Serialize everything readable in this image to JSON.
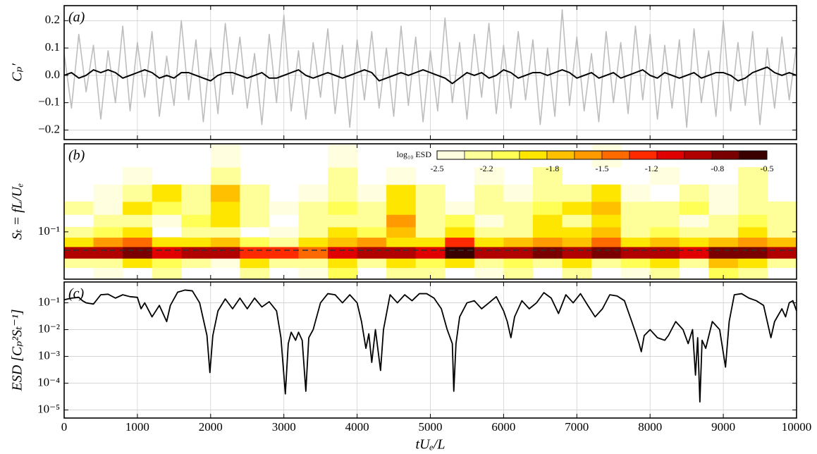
{
  "chart_data": [
    {
      "type": "line",
      "panel_label": "(a)",
      "ylabel": "Cₚ′",
      "xlim": [
        0,
        10000
      ],
      "xticks": [
        0,
        1000,
        2000,
        3000,
        4000,
        5000,
        6000,
        7000,
        8000,
        9000,
        10000
      ],
      "ylim": [
        -0.235,
        0.255
      ],
      "yticks": [
        {
          "value": -0.2,
          "label": "−0.2"
        },
        {
          "value": -0.1,
          "label": "−0.1"
        },
        {
          "value": 0,
          "label": "0.0"
        },
        0.1,
        0.2
      ],
      "grid": true,
      "x": [
        0,
        100,
        200,
        300,
        400,
        500,
        600,
        700,
        800,
        900,
        1000,
        1100,
        1200,
        1300,
        1400,
        1500,
        1600,
        1700,
        1800,
        1900,
        2000,
        2100,
        2200,
        2300,
        2400,
        2500,
        2600,
        2700,
        2800,
        2900,
        3000,
        3100,
        3200,
        3300,
        3400,
        3500,
        3600,
        3700,
        3800,
        3900,
        4000,
        4100,
        4200,
        4300,
        4400,
        4500,
        4600,
        4700,
        4800,
        4900,
        5000,
        5100,
        5200,
        5300,
        5400,
        5500,
        5600,
        5700,
        5800,
        5900,
        6000,
        6100,
        6200,
        6300,
        6400,
        6500,
        6600,
        6700,
        6800,
        6900,
        7000,
        7100,
        7200,
        7300,
        7400,
        7500,
        7600,
        7700,
        7800,
        7900,
        8000,
        8100,
        8200,
        8300,
        8400,
        8500,
        8600,
        8700,
        8800,
        8900,
        9000,
        9100,
        9200,
        9300,
        9400,
        9500,
        9600,
        9700,
        9800,
        9900,
        10000
      ],
      "series": [
        {
          "color": "#bdbdbd",
          "width": 1.6,
          "values": [
            0.08,
            -0.12,
            0.15,
            -0.06,
            0.11,
            -0.16,
            0.09,
            -0.1,
            0.18,
            -0.13,
            0.12,
            -0.08,
            0.16,
            -0.15,
            0.07,
            -0.11,
            0.2,
            -0.09,
            0.13,
            -0.17,
            0.1,
            -0.14,
            0.19,
            -0.07,
            0.14,
            -0.12,
            0.08,
            -0.18,
            0.15,
            -0.1,
            0.22,
            -0.13,
            0.09,
            -0.16,
            0.12,
            -0.08,
            0.17,
            -0.14,
            0.11,
            -0.19,
            0.13,
            -0.09,
            0.16,
            -0.12,
            0.1,
            -0.15,
            0.18,
            -0.11,
            0.14,
            -0.17,
            0.09,
            -0.13,
            0.21,
            -0.1,
            0.12,
            -0.16,
            0.15,
            -0.08,
            0.19,
            -0.14,
            0.11,
            -0.12,
            0.16,
            -0.09,
            0.13,
            -0.18,
            0.1,
            -0.15,
            0.24,
            -0.11,
            0.14,
            -0.13,
            0.08,
            -0.17,
            0.16,
            -0.1,
            0.12,
            -0.14,
            0.18,
            -0.09,
            0.15,
            -0.16,
            0.11,
            -0.12,
            0.13,
            -0.19,
            0.17,
            -0.1,
            0.09,
            -0.15,
            0.2,
            -0.13,
            0.12,
            -0.11,
            0.16,
            -0.18,
            0.1,
            -0.12,
            0.14,
            -0.09,
            0.11
          ]
        },
        {
          "color": "#000000",
          "width": 2,
          "values": [
            0.0,
            0.01,
            -0.01,
            0.0,
            0.02,
            0.01,
            0.02,
            0.01,
            -0.01,
            0.0,
            0.01,
            0.02,
            0.01,
            -0.01,
            0.0,
            -0.01,
            0.01,
            0.01,
            0.0,
            -0.01,
            -0.02,
            0.0,
            0.01,
            0.01,
            0.0,
            -0.01,
            0.0,
            0.01,
            -0.01,
            -0.01,
            0.0,
            0.01,
            0.02,
            0.0,
            -0.01,
            0.0,
            0.01,
            0.0,
            -0.01,
            0.0,
            0.01,
            0.02,
            0.01,
            -0.02,
            -0.01,
            0.0,
            0.01,
            0.0,
            0.01,
            0.02,
            0.01,
            0.0,
            -0.01,
            -0.03,
            -0.01,
            0.01,
            0.0,
            0.01,
            -0.01,
            0.0,
            0.02,
            0.01,
            -0.01,
            0.0,
            0.01,
            0.01,
            0.0,
            0.01,
            0.02,
            0.01,
            -0.01,
            0.0,
            0.01,
            -0.01,
            0.0,
            0.01,
            -0.01,
            0.0,
            0.01,
            0.02,
            0.0,
            -0.01,
            0.01,
            0.0,
            -0.01,
            0.0,
            0.01,
            -0.01,
            0.0,
            0.01,
            0.01,
            0.0,
            -0.02,
            -0.01,
            0.01,
            0.02,
            0.03,
            0.01,
            0.0,
            0.01,
            0.0
          ]
        }
      ]
    },
    {
      "type": "heatmap",
      "panel_label": "(b)",
      "ylabel": "Sₜ = fL/Uₑ",
      "xlim": [
        0,
        10000
      ],
      "xticks": [
        0,
        1000,
        2000,
        3000,
        4000,
        5000,
        6000,
        7000,
        8000,
        9000,
        10000
      ],
      "yscale": "log",
      "ylim": [
        0.04,
        0.55
      ],
      "yticks": [
        {
          "value": 0.1,
          "label": "10⁻¹"
        }
      ],
      "hline": 0.07,
      "x_edges": [
        0,
        400,
        800,
        1200,
        1600,
        2000,
        2400,
        2800,
        3200,
        3600,
        4000,
        4400,
        4800,
        5200,
        5600,
        6000,
        6400,
        6800,
        7200,
        7600,
        8000,
        8400,
        8800,
        9200,
        9600,
        10000
      ],
      "y_edges": [
        0.04,
        0.05,
        0.06,
        0.075,
        0.09,
        0.11,
        0.14,
        0.18,
        0.25,
        0.35,
        0.55
      ],
      "z": [
        [
          null,
          -2.4,
          null,
          -2.3,
          null,
          null,
          -2.2,
          null,
          -2.4,
          -2.1,
          null,
          -2.2,
          -2.3,
          null,
          -2.4,
          -2.3,
          null,
          -2.2,
          null,
          -2.4,
          -2.3,
          null,
          -2.1,
          -2.3,
          null
        ],
        [
          -2.3,
          -2.2,
          -2.0,
          -2.1,
          -2.3,
          -2.4,
          -2.0,
          -2.2,
          -2.3,
          -1.9,
          -2.2,
          -2.0,
          -2.1,
          -1.9,
          -2.2,
          -2.1,
          -2.3,
          -2.0,
          -2.2,
          -2.1,
          -2.0,
          -2.3,
          -1.8,
          -2.0,
          -2.2
        ],
        [
          -1.0,
          -0.9,
          -0.8,
          -1.1,
          -1.0,
          -0.9,
          -1.3,
          -1.2,
          -1.4,
          -1.1,
          -0.9,
          -1.0,
          -1.1,
          -0.6,
          -1.0,
          -0.9,
          -0.7,
          -1.0,
          -0.8,
          -0.9,
          -1.0,
          -1.1,
          -0.8,
          -0.7,
          -0.9
        ],
        [
          -1.9,
          -1.6,
          -1.5,
          -2.0,
          -1.9,
          -1.8,
          -2.1,
          -2.2,
          -2.0,
          -1.8,
          -1.6,
          -1.9,
          -2.0,
          -1.3,
          -1.9,
          -1.7,
          -1.6,
          -1.8,
          -1.5,
          -1.9,
          -1.8,
          -2.0,
          -1.7,
          -1.6,
          -1.8
        ],
        [
          -2.3,
          -2.1,
          -2.0,
          null,
          -2.2,
          -2.3,
          null,
          -2.4,
          -2.2,
          -2.0,
          -2.1,
          -1.7,
          -2.2,
          -2.0,
          -2.3,
          -2.2,
          -1.9,
          -2.0,
          -1.8,
          -2.2,
          -2.1,
          -2.3,
          -2.2,
          -2.0,
          -2.3
        ],
        [
          null,
          -2.2,
          -2.3,
          -2.4,
          -2.1,
          -2.0,
          -2.3,
          null,
          -2.2,
          -2.3,
          -2.2,
          -1.6,
          -2.3,
          -2.1,
          -2.4,
          -2.3,
          -2.0,
          -2.2,
          -1.9,
          -2.3,
          -2.2,
          -2.4,
          -2.3,
          -2.1,
          -2.2
        ],
        [
          -2.3,
          -2.4,
          -2.0,
          -2.1,
          -2.3,
          -1.9,
          -2.2,
          -2.4,
          -2.3,
          -2.1,
          -2.3,
          -1.9,
          -2.2,
          -2.4,
          -2.2,
          -2.3,
          -2.1,
          -2.0,
          -1.8,
          -2.2,
          -2.3,
          -2.1,
          -2.4,
          -2.2,
          -2.3
        ],
        [
          null,
          -2.4,
          -2.2,
          -2.0,
          -2.3,
          -1.8,
          -2.3,
          null,
          -2.4,
          -2.2,
          -2.4,
          -2.0,
          -2.3,
          null,
          -2.3,
          -2.4,
          -2.2,
          -2.3,
          -2.0,
          -2.4,
          null,
          -2.2,
          -2.4,
          -2.3,
          null
        ],
        [
          null,
          null,
          -2.4,
          null,
          null,
          -2.3,
          null,
          null,
          null,
          -2.2,
          null,
          -2.4,
          null,
          null,
          -2.4,
          null,
          -2.3,
          null,
          null,
          null,
          -2.4,
          null,
          null,
          -2.3,
          null
        ],
        [
          null,
          null,
          null,
          null,
          null,
          -2.4,
          null,
          null,
          null,
          -2.4,
          null,
          null,
          null,
          null,
          null,
          null,
          null,
          null,
          -2.4,
          null,
          null,
          null,
          null,
          null,
          null
        ]
      ],
      "colorbar": {
        "label": "log₁₀ ESD",
        "clim": [
          -2.5,
          -0.5
        ],
        "ticks": [
          -2.5,
          -2.2,
          -1.8,
          -1.5,
          -1.2,
          -0.8,
          -0.5
        ],
        "colors": [
          "#ffffe0",
          "#ffff99",
          "#ffff55",
          "#ffe600",
          "#ffc000",
          "#ff9a00",
          "#ff6a00",
          "#ff2a00",
          "#e00000",
          "#b00000",
          "#7a0000",
          "#3a0000"
        ]
      }
    },
    {
      "type": "line",
      "panel_label": "(c)",
      "ylabel": "ESD [Cₚ²Sₜ⁻¹]",
      "xlabel": "tUₑ/L",
      "xlim": [
        0,
        10000
      ],
      "xticks": [
        0,
        1000,
        2000,
        3000,
        4000,
        5000,
        6000,
        7000,
        8000,
        9000,
        10000
      ],
      "yscale": "log",
      "ylim": [
        5e-06,
        0.6
      ],
      "yticks": [
        {
          "value": 1e-05,
          "label": "10⁻⁵"
        },
        {
          "value": 0.0001,
          "label": "10⁻⁴"
        },
        {
          "value": 0.001,
          "label": "10⁻³"
        },
        {
          "value": 0.01,
          "label": "10⁻²"
        },
        {
          "value": 0.1,
          "label": "10⁻¹"
        }
      ],
      "grid": true,
      "x": [
        0,
        100,
        200,
        250,
        300,
        400,
        500,
        600,
        700,
        800,
        900,
        1000,
        1050,
        1100,
        1200,
        1300,
        1400,
        1450,
        1550,
        1650,
        1750,
        1850,
        1950,
        1990,
        2030,
        2100,
        2200,
        2300,
        2400,
        2500,
        2600,
        2700,
        2800,
        2900,
        2960,
        3020,
        3060,
        3100,
        3160,
        3200,
        3250,
        3300,
        3340,
        3400,
        3500,
        3600,
        3700,
        3800,
        3900,
        4000,
        4060,
        4120,
        4160,
        4200,
        4250,
        4320,
        4360,
        4450,
        4550,
        4650,
        4750,
        4850,
        4950,
        5050,
        5150,
        5230,
        5300,
        5320,
        5350,
        5400,
        5500,
        5600,
        5700,
        5800,
        5900,
        6000,
        6050,
        6100,
        6150,
        6250,
        6350,
        6450,
        6550,
        6650,
        6750,
        6850,
        6950,
        7050,
        7150,
        7250,
        7350,
        7450,
        7550,
        7650,
        7750,
        7800,
        7850,
        7880,
        7920,
        8000,
        8100,
        8200,
        8250,
        8350,
        8450,
        8520,
        8580,
        8620,
        8650,
        8680,
        8710,
        8760,
        8850,
        8950,
        9030,
        9080,
        9150,
        9250,
        9350,
        9450,
        9550,
        9650,
        9700,
        9800,
        9850,
        9900,
        9950,
        10000
      ],
      "series": [
        {
          "color": "#000000",
          "width": 1.8,
          "values": [
            0.13,
            0.15,
            0.16,
            0.12,
            0.1,
            0.09,
            0.2,
            0.21,
            0.15,
            0.2,
            0.17,
            0.16,
            0.06,
            0.1,
            0.03,
            0.08,
            0.02,
            0.08,
            0.25,
            0.3,
            0.28,
            0.1,
            0.006,
            0.00025,
            0.006,
            0.05,
            0.14,
            0.06,
            0.15,
            0.06,
            0.15,
            0.07,
            0.11,
            0.05,
            0.005,
            4e-05,
            0.003,
            0.008,
            0.004,
            0.008,
            0.004,
            5e-05,
            0.005,
            0.01,
            0.1,
            0.22,
            0.2,
            0.1,
            0.2,
            0.1,
            0.02,
            0.002,
            0.007,
            0.0006,
            0.01,
            0.0003,
            0.01,
            0.2,
            0.1,
            0.2,
            0.12,
            0.22,
            0.22,
            0.15,
            0.06,
            0.01,
            0.003,
            5e-05,
            0.003,
            0.03,
            0.1,
            0.12,
            0.06,
            0.1,
            0.17,
            0.05,
            0.02,
            0.005,
            0.03,
            0.12,
            0.06,
            0.1,
            0.24,
            0.15,
            0.04,
            0.2,
            0.1,
            0.22,
            0.08,
            0.03,
            0.06,
            0.2,
            0.18,
            0.12,
            0.02,
            0.008,
            0.003,
            0.0015,
            0.006,
            0.01,
            0.005,
            0.004,
            0.006,
            0.02,
            0.01,
            0.003,
            0.01,
            0.0002,
            0.005,
            2e-05,
            0.004,
            0.002,
            0.02,
            0.01,
            0.0004,
            0.02,
            0.2,
            0.22,
            0.15,
            0.12,
            0.08,
            0.005,
            0.02,
            0.06,
            0.03,
            0.1,
            0.12,
            0.05
          ]
        }
      ]
    }
  ]
}
